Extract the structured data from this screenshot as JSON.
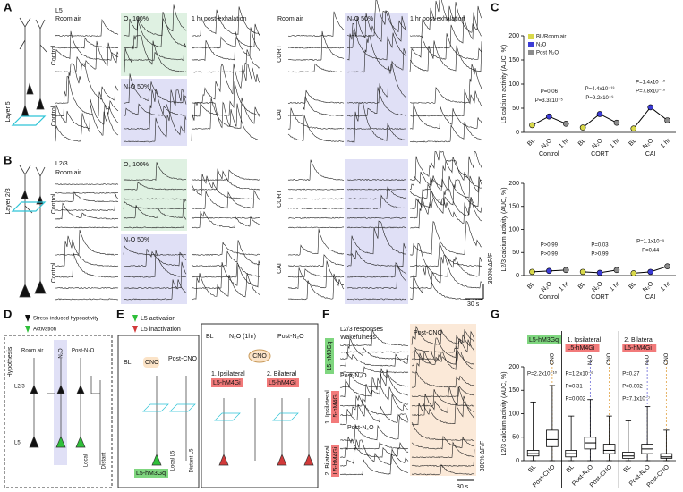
{
  "panel_a": {
    "label": "A",
    "layer_label": "L5",
    "room_air_1": "Room air",
    "o2": "O₂ 100%",
    "post_1": "1 hr post-exhalation",
    "room_air_2": "Room air",
    "n2o_1": "N₂O 50%",
    "post_2": "1 hr post-exhalation",
    "control_1": "Control",
    "cort": "CORT",
    "n2o_2": "N₂O 50%",
    "control_2": "Control",
    "cai": "CAI",
    "layer": "Layer 5"
  },
  "panel_b": {
    "label": "B",
    "layer_label": "L2/3",
    "room_air": "Room air",
    "o2": "O₂ 100%",
    "control_1": "Control",
    "cort": "CORT",
    "n2o": "N₂O 50%",
    "control_2": "Control",
    "cai": "CAI",
    "layer": "Layer 2/3",
    "scale_y": "300% ΔF/F",
    "scale_x": "30 s"
  },
  "panel_c": {
    "label": "C"
  },
  "panel_d": {
    "label": "D",
    "hypothesis": "Hypothesis",
    "legend_1": "Stress-induced hypoactivity",
    "legend_2": "Activation",
    "room_air": "Room air",
    "n2o": "N₂O",
    "post": "Post-N₂O",
    "l23": "L2/3",
    "l5": "L5",
    "local": "Local",
    "distant": "Distant"
  },
  "panel_e": {
    "label": "E",
    "legend_1": "L5 activation",
    "legend_2": "L5 inactivation",
    "flow_1": [
      "BL",
      "CNO",
      "Post-CNO"
    ],
    "flow_2": [
      "BL",
      "N₂O (1hr)",
      "Post-N₂O"
    ],
    "cno": "CNO",
    "ipsi": [
      "1. Ipsilateral",
      "L5-hM4Gi"
    ],
    "bilat": [
      "2. Bilateral",
      "L5-hM4Gi"
    ],
    "activator": "L5-hM3Gq",
    "local": "Local L5",
    "distant": "Distant L5"
  },
  "panel_f": {
    "label": "F",
    "title": [
      "L2/3 responses",
      "Wakefulness"
    ],
    "post_cno": "Post-CNO",
    "group_1": "L5-hM3Gq",
    "post_n2o_1": "Post-N₂O",
    "group_2": [
      "1. Ipsilateral",
      "L5-hM4Gi"
    ],
    "post_n2o_2": "Post-N₂O",
    "group_3": [
      "2. Bilateral",
      "L5-hM4Gi"
    ],
    "scale_y": "300% ΔF/F",
    "scale_x": "30 s"
  },
  "panel_g": {
    "label": "G"
  },
  "chart_data": [
    {
      "type": "dot",
      "y_label": "L5 calcium activity (AUC, %)",
      "ylim": [
        0,
        200
      ],
      "yticks": [
        0,
        50,
        100,
        150,
        200
      ],
      "legend": "upper left",
      "categories": [
        "BL",
        "N₂O",
        "1 hr"
      ],
      "groups": [
        {
          "name": "Control",
          "annotations": [
            "P=0.06",
            "P=3.3x10⁻⁵"
          ]
        },
        {
          "name": "CORT",
          "annotations": [
            "P=4.4x10⁻¹³",
            "P=9.2x10⁻⁹"
          ]
        },
        {
          "name": "CAI",
          "annotations": [
            "P=1.4x10⁻¹⁰",
            "P=7.8x10⁻¹⁰"
          ]
        }
      ],
      "series": [
        {
          "name": "BL/Room air",
          "color": "#d8d84a",
          "values": [
            15,
            10,
            8
          ]
        },
        {
          "name": "N₂O",
          "color": "#3b3bd6",
          "values": [
            33,
            38,
            52
          ]
        },
        {
          "name": "Post N₂O",
          "color": "#8c8c8c",
          "values": [
            18,
            20,
            25
          ]
        }
      ]
    },
    {
      "type": "dot",
      "y_label": "L2/3 calcium activity (AUC, %)",
      "ylim": [
        0,
        200
      ],
      "yticks": [
        0,
        50,
        100,
        150,
        200
      ],
      "categories": [
        "BL",
        "N₂O",
        "1 hr"
      ],
      "groups": [
        {
          "name": "Control",
          "annotations": [
            "P>0.99",
            "P>0.99"
          ]
        },
        {
          "name": "CORT",
          "annotations": [
            "P=0.03",
            "P>0.99"
          ]
        },
        {
          "name": "CAI",
          "annotations": [
            "P=1.1x10⁻⁵",
            "P=0.44"
          ]
        }
      ],
      "series": [
        {
          "name": "BL/Room air",
          "color": "#d8d84a",
          "values": [
            8,
            8,
            5
          ]
        },
        {
          "name": "N₂O",
          "color": "#3b3bd6",
          "values": [
            10,
            6,
            8
          ]
        },
        {
          "name": "Post N₂O",
          "color": "#8c8c8c",
          "values": [
            12,
            12,
            20
          ]
        }
      ]
    },
    {
      "type": "box",
      "y_label": "L2/3 calcium activity (AUC, %)",
      "ylim": [
        0,
        200
      ],
      "yticks": [
        0,
        50,
        100,
        150,
        200
      ],
      "groups": [
        {
          "name": [
            "L5-hM3Gq"
          ],
          "name_color": "#7fd67f",
          "categories": [
            "BL",
            "Post-CNO"
          ],
          "markers": [
            null,
            "CNO"
          ],
          "annotations": [
            "P=2.2x10⁻¹⁰"
          ],
          "boxes": [
            {
              "min": 0,
              "q1": 10,
              "median": 15,
              "q3": 22,
              "max": 125
            },
            {
              "min": 0,
              "q1": 30,
              "median": 45,
              "q3": 65,
              "max": 160
            }
          ]
        },
        {
          "name": [
            "1. Ipsilateral",
            "L5-hM4Gi"
          ],
          "name_color": "#f27a7a",
          "categories": [
            "BL",
            "Post-N₂O",
            "Post-CNO"
          ],
          "markers": [
            null,
            "N₂O",
            "CNO"
          ],
          "annotations": [
            "P=1.2x10⁻⁶",
            "P=0.31",
            "P=0.002"
          ],
          "boxes": [
            {
              "min": 0,
              "q1": 8,
              "median": 15,
              "q3": 22,
              "max": 95
            },
            {
              "min": 0,
              "q1": 25,
              "median": 38,
              "q3": 50,
              "max": 130
            },
            {
              "min": 0,
              "q1": 15,
              "median": 22,
              "q3": 35,
              "max": 95
            }
          ]
        },
        {
          "name": [
            "2. Bilateral",
            "L5-hM4Gi"
          ],
          "name_color": "#f27a7a",
          "categories": [
            "BL",
            "Post-N₂O",
            "Post-CNO"
          ],
          "markers": [
            null,
            "N₂O",
            "CNO"
          ],
          "annotations": [
            "P=0.27",
            "P=0.002",
            "P=7.1x10⁻⁷"
          ],
          "boxes": [
            {
              "min": 0,
              "q1": 5,
              "median": 10,
              "q3": 18,
              "max": 85
            },
            {
              "min": 0,
              "q1": 15,
              "median": 25,
              "q3": 35,
              "max": 115
            },
            {
              "min": 0,
              "q1": 5,
              "median": 8,
              "q3": 15,
              "max": 65
            }
          ]
        }
      ]
    }
  ]
}
